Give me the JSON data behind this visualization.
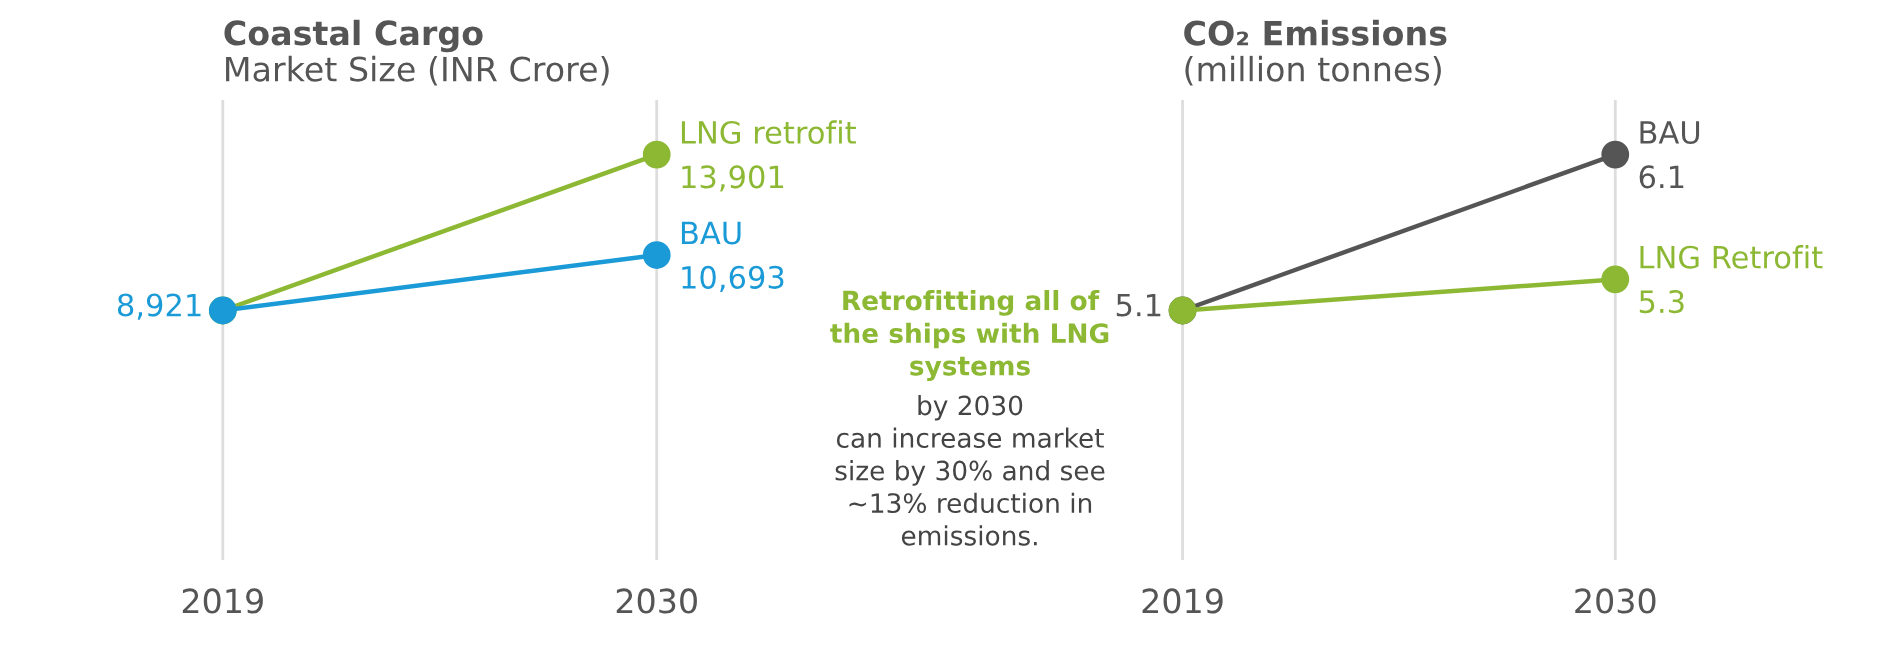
{
  "chart_data": [
    {
      "type": "line",
      "title": "Coastal Cargo",
      "subtitle": "Market Size (INR Crore)",
      "categories": [
        "2019",
        "2030"
      ],
      "marker": "circle",
      "grid": "x",
      "tick_labels": "x",
      "series": [
        {
          "name": "LNG retrofit",
          "color": "#8cb833",
          "values": [
            8921,
            13901
          ],
          "value_labels": [
            null,
            "13,901"
          ]
        },
        {
          "name": "BAU",
          "color": "#1a9ad6",
          "values": [
            8921,
            10693
          ],
          "value_labels": [
            "8,921",
            "10,693"
          ]
        }
      ]
    },
    {
      "type": "other",
      "annotations": [
        "Retrofitting all of\nthe ships with LNG\nsystems",
        "by 2030\ncan increase market\nsize by 30% and see\n~13% reduction in\nemissions."
      ]
    },
    {
      "type": "line",
      "title": "CO₂ Emissions",
      "subtitle": "(million tonnes)",
      "categories": [
        "2019",
        "2030"
      ],
      "marker": "circle",
      "grid": "x",
      "tick_labels": "x",
      "series": [
        {
          "name": "BAU",
          "color": "#555555",
          "values": [
            5.1,
            6.1
          ],
          "value_labels": [
            "5.1",
            "6.1"
          ]
        },
        {
          "name": "LNG Retrofit",
          "color": "#8cb833",
          "values": [
            5.1,
            5.3
          ],
          "value_labels": [
            null,
            "5.3"
          ]
        }
      ]
    }
  ]
}
